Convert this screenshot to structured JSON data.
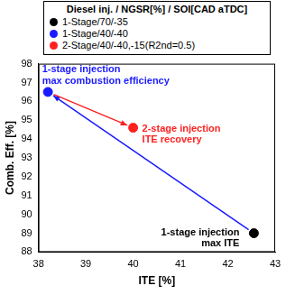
{
  "chart_data": {
    "type": "scatter",
    "x_label": "ITE [%]",
    "y_label": "Comb. Eff. [%]",
    "xlim": [
      38,
      43
    ],
    "xticks": [
      38,
      39,
      40,
      41,
      42,
      43
    ],
    "ylim": [
      88,
      98
    ],
    "yticks": [
      88,
      89,
      90,
      91,
      92,
      93,
      94,
      95,
      96,
      97,
      98
    ],
    "grid": false,
    "legend": "top",
    "legend_title": "Diesel inj. / NGSR[%] / SOI[CAD aTDC]",
    "series": [
      {
        "name": "1-Stage/70/-35",
        "color": "#000000",
        "marker": "circle",
        "x": [
          42.55
        ],
        "values": [
          89.0
        ],
        "annotation": [
          "1-stage injection",
          "max ITE"
        ]
      },
      {
        "name": "1-Stage/40/-40",
        "color": "#1a1aff",
        "marker": "circle",
        "x": [
          38.2
        ],
        "values": [
          96.5
        ],
        "annotation": [
          "1-stage injection",
          "max combustion efficiency"
        ]
      },
      {
        "name": "2-Stage/40/-40,-15(R2nd=0.5)",
        "color": "#ff2020",
        "marker": "circle",
        "x": [
          40.0
        ],
        "values": [
          94.6
        ],
        "annotation": [
          "2-stage injection",
          "ITE recovery"
        ]
      }
    ],
    "arrows": [
      {
        "from": "1-Stage/70/-35",
        "to": "1-Stage/40/-40",
        "color": "#1a1aff"
      },
      {
        "from": "1-Stage/40/-40",
        "to": "2-Stage/40/-40,-15(R2nd=0.5)",
        "color": "#ff2020"
      }
    ]
  }
}
